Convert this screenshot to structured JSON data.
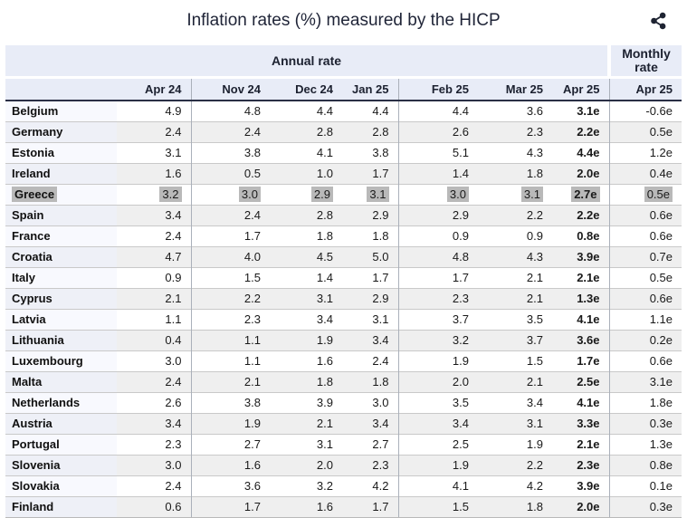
{
  "header": {
    "title": "Inflation rates (%) measured by the HICP",
    "share_icon": "share-icon"
  },
  "chart_data": {
    "type": "table",
    "title": "Inflation rates (%) measured by the HICP",
    "unit": "%",
    "column_groups": {
      "annual_label": "Annual rate",
      "monthly_label": "Monthly rate"
    },
    "annual_columns": [
      "Apr 24",
      "Nov 24",
      "Dec 24",
      "Jan 25",
      "Feb 25",
      "Mar 25",
      "Apr 25"
    ],
    "monthly_column": "Apr 25",
    "estimate_suffix": "e",
    "highlighted_country": "Greece",
    "rows": [
      {
        "country": "Belgium",
        "annual": [
          "4.9",
          "4.8",
          "4.4",
          "4.4",
          "4.4",
          "3.6",
          "3.1e"
        ],
        "monthly": "-0.6e",
        "highlighted": false
      },
      {
        "country": "Germany",
        "annual": [
          "2.4",
          "2.4",
          "2.8",
          "2.8",
          "2.6",
          "2.3",
          "2.2e"
        ],
        "monthly": "0.5e",
        "highlighted": false
      },
      {
        "country": "Estonia",
        "annual": [
          "3.1",
          "3.8",
          "4.1",
          "3.8",
          "5.1",
          "4.3",
          "4.4e"
        ],
        "monthly": "1.2e",
        "highlighted": false
      },
      {
        "country": "Ireland",
        "annual": [
          "1.6",
          "0.5",
          "1.0",
          "1.7",
          "1.4",
          "1.8",
          "2.0e"
        ],
        "monthly": "0.4e",
        "highlighted": false
      },
      {
        "country": "Greece",
        "annual": [
          "3.2",
          "3.0",
          "2.9",
          "3.1",
          "3.0",
          "3.1",
          "2.7e"
        ],
        "monthly": "0.5e",
        "highlighted": true
      },
      {
        "country": "Spain",
        "annual": [
          "3.4",
          "2.4",
          "2.8",
          "2.9",
          "2.9",
          "2.2",
          "2.2e"
        ],
        "monthly": "0.6e",
        "highlighted": false
      },
      {
        "country": "France",
        "annual": [
          "2.4",
          "1.7",
          "1.8",
          "1.8",
          "0.9",
          "0.9",
          "0.8e"
        ],
        "monthly": "0.6e",
        "highlighted": false
      },
      {
        "country": "Croatia",
        "annual": [
          "4.7",
          "4.0",
          "4.5",
          "5.0",
          "4.8",
          "4.3",
          "3.9e"
        ],
        "monthly": "0.7e",
        "highlighted": false
      },
      {
        "country": "Italy",
        "annual": [
          "0.9",
          "1.5",
          "1.4",
          "1.7",
          "1.7",
          "2.1",
          "2.1e"
        ],
        "monthly": "0.5e",
        "highlighted": false
      },
      {
        "country": "Cyprus",
        "annual": [
          "2.1",
          "2.2",
          "3.1",
          "2.9",
          "2.3",
          "2.1",
          "1.3e"
        ],
        "monthly": "0.6e",
        "highlighted": false
      },
      {
        "country": "Latvia",
        "annual": [
          "1.1",
          "2.3",
          "3.4",
          "3.1",
          "3.7",
          "3.5",
          "4.1e"
        ],
        "monthly": "1.1e",
        "highlighted": false
      },
      {
        "country": "Lithuania",
        "annual": [
          "0.4",
          "1.1",
          "1.9",
          "3.4",
          "3.2",
          "3.7",
          "3.6e"
        ],
        "monthly": "0.2e",
        "highlighted": false
      },
      {
        "country": "Luxembourg",
        "annual": [
          "3.0",
          "1.1",
          "1.6",
          "2.4",
          "1.9",
          "1.5",
          "1.7e"
        ],
        "monthly": "0.6e",
        "highlighted": false
      },
      {
        "country": "Malta",
        "annual": [
          "2.4",
          "2.1",
          "1.8",
          "1.8",
          "2.0",
          "2.1",
          "2.5e"
        ],
        "monthly": "3.1e",
        "highlighted": false
      },
      {
        "country": "Netherlands",
        "annual": [
          "2.6",
          "3.8",
          "3.9",
          "3.0",
          "3.5",
          "3.4",
          "4.1e"
        ],
        "monthly": "1.8e",
        "highlighted": false
      },
      {
        "country": "Austria",
        "annual": [
          "3.4",
          "1.9",
          "2.1",
          "3.4",
          "3.4",
          "3.1",
          "3.3e"
        ],
        "monthly": "0.3e",
        "highlighted": false
      },
      {
        "country": "Portugal",
        "annual": [
          "2.3",
          "2.7",
          "3.1",
          "2.7",
          "2.5",
          "1.9",
          "2.1e"
        ],
        "monthly": "1.3e",
        "highlighted": false
      },
      {
        "country": "Slovenia",
        "annual": [
          "3.0",
          "1.6",
          "2.0",
          "2.3",
          "1.9",
          "2.2",
          "2.3e"
        ],
        "monthly": "0.8e",
        "highlighted": false
      },
      {
        "country": "Slovakia",
        "annual": [
          "2.4",
          "3.6",
          "3.2",
          "4.2",
          "4.1",
          "4.2",
          "3.9e"
        ],
        "monthly": "0.1e",
        "highlighted": false
      },
      {
        "country": "Finland",
        "annual": [
          "0.6",
          "1.7",
          "1.6",
          "1.7",
          "1.5",
          "1.8",
          "2.0e"
        ],
        "monthly": "0.3e",
        "highlighted": false
      }
    ],
    "layout": {
      "group_separator_before_columns": [
        "Nov 24",
        "Feb 25",
        "Apr 25 (monthly)"
      ],
      "colors": {
        "header_bg": "#e8ecf7",
        "header_border": "#2a2f45",
        "row_alt_bg": "#efefef",
        "country_col_bg": "#f8f9fe",
        "country_col_alt_bg": "#eef0f7",
        "row_border": "#c9c9c9",
        "highlight_mark": "#b9b9b9",
        "title_color": "#1f2437"
      }
    }
  }
}
